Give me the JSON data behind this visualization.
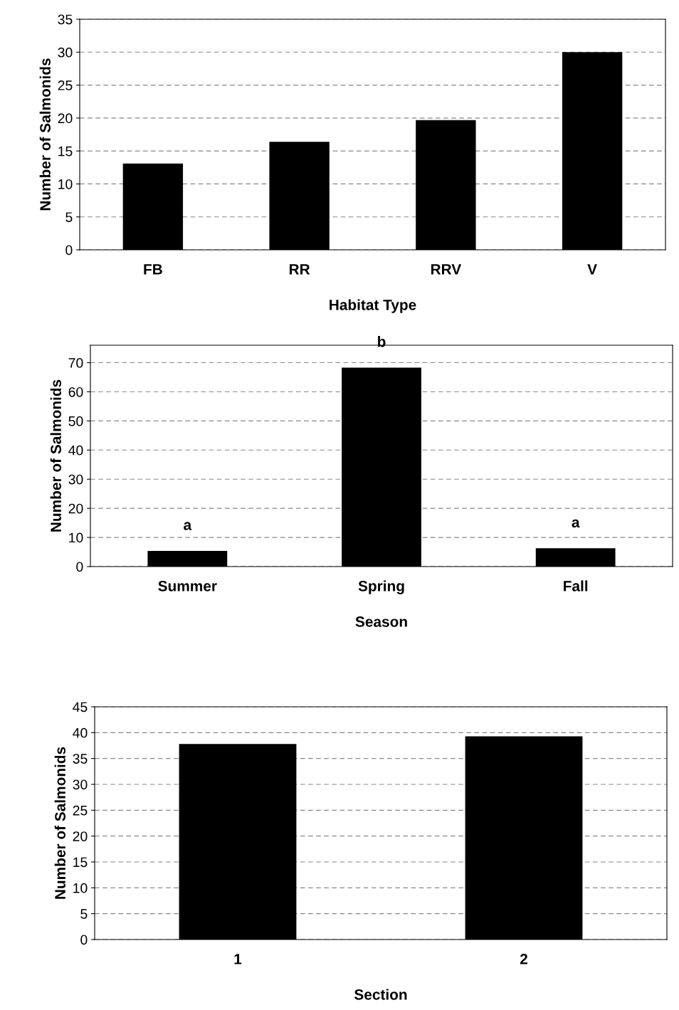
{
  "chart_data": [
    {
      "type": "bar",
      "xlabel": "Habitat Type",
      "ylabel": "Number of Salmonids",
      "categories": [
        "FB",
        "RR",
        "RRV",
        "V"
      ],
      "values": [
        13.1,
        16.4,
        19.7,
        30.0
      ],
      "color": "#000000",
      "ylim": [
        0,
        35
      ],
      "yticks": [
        0,
        5,
        10,
        15,
        20,
        25,
        30,
        35
      ],
      "grid": "y"
    },
    {
      "type": "bar",
      "xlabel": "Season",
      "ylabel": "Number of Salmonids",
      "categories": [
        "Summer",
        "Spring",
        "Fall"
      ],
      "values": [
        5.4,
        68.3,
        6.3
      ],
      "color": "#000000",
      "ylim": [
        0,
        76
      ],
      "yticks": [
        0,
        10,
        20,
        30,
        40,
        50,
        60,
        70
      ],
      "grid": "y",
      "annotations": [
        {
          "text": "a",
          "x": "Summer",
          "y": 5.4
        },
        {
          "text": "b",
          "x": "Spring",
          "y": 68.3
        },
        {
          "text": "a",
          "x": "Fall",
          "y": 6.3
        }
      ]
    },
    {
      "type": "bar",
      "xlabel": "Section",
      "ylabel": "Number of Salmonids",
      "categories": [
        "1",
        "2"
      ],
      "values": [
        37.8,
        39.3
      ],
      "color": "#000000",
      "ylim": [
        0,
        45
      ],
      "yticks": [
        0,
        5,
        10,
        15,
        20,
        25,
        30,
        35,
        40,
        45
      ],
      "grid": "y"
    }
  ]
}
